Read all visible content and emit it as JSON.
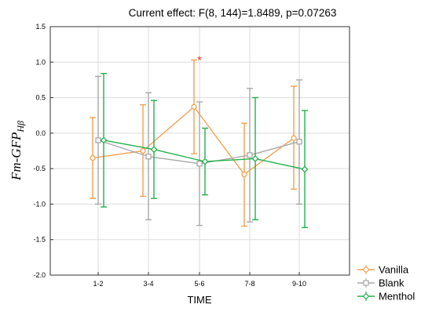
{
  "chart_data": {
    "type": "line",
    "title": "Current effect: F(8, 144)=1.8489, p=0.07263",
    "xlabel": "TIME",
    "ylabel": {
      "main": "Fm-GFP",
      "sub": "Hβ"
    },
    "categories": [
      "1-2",
      "3-4",
      "5-6",
      "7-8",
      "9-10"
    ],
    "ylim": [
      -2.0,
      1.5
    ],
    "yticks": [
      "1.5",
      "1.0",
      "0.5",
      "0.0",
      "-0.5",
      "-1.0",
      "-1.5",
      "-2.0"
    ],
    "grid": true,
    "error_bars": true,
    "annotation": {
      "text": "*",
      "category": "5-6",
      "color": "#e8322a"
    },
    "legend_position": "bottom-right outside",
    "series": [
      {
        "name": "Vanilla",
        "color": "#f5a04e",
        "marker": "circle",
        "values": [
          -0.35,
          -0.25,
          0.37,
          -0.58,
          -0.07
        ],
        "lower": [
          -0.92,
          -0.89,
          -0.29,
          -1.31,
          -0.79
        ],
        "upper": [
          0.22,
          0.4,
          1.03,
          0.14,
          0.66
        ]
      },
      {
        "name": "Blank",
        "color": "#a8a8a8",
        "marker": "square",
        "values": [
          -0.1,
          -0.33,
          -0.43,
          -0.31,
          -0.12
        ],
        "lower": [
          -1.0,
          -1.22,
          -1.3,
          -1.25,
          -1.0
        ],
        "upper": [
          0.8,
          0.57,
          0.44,
          0.63,
          0.75
        ]
      },
      {
        "name": "Menthol",
        "color": "#22b24c",
        "marker": "diamond",
        "values": [
          -0.1,
          -0.23,
          -0.4,
          -0.36,
          -0.51
        ],
        "lower": [
          -1.04,
          -0.92,
          -0.87,
          -1.22,
          -1.33
        ],
        "upper": [
          0.84,
          0.46,
          0.07,
          0.5,
          0.32
        ]
      }
    ]
  }
}
